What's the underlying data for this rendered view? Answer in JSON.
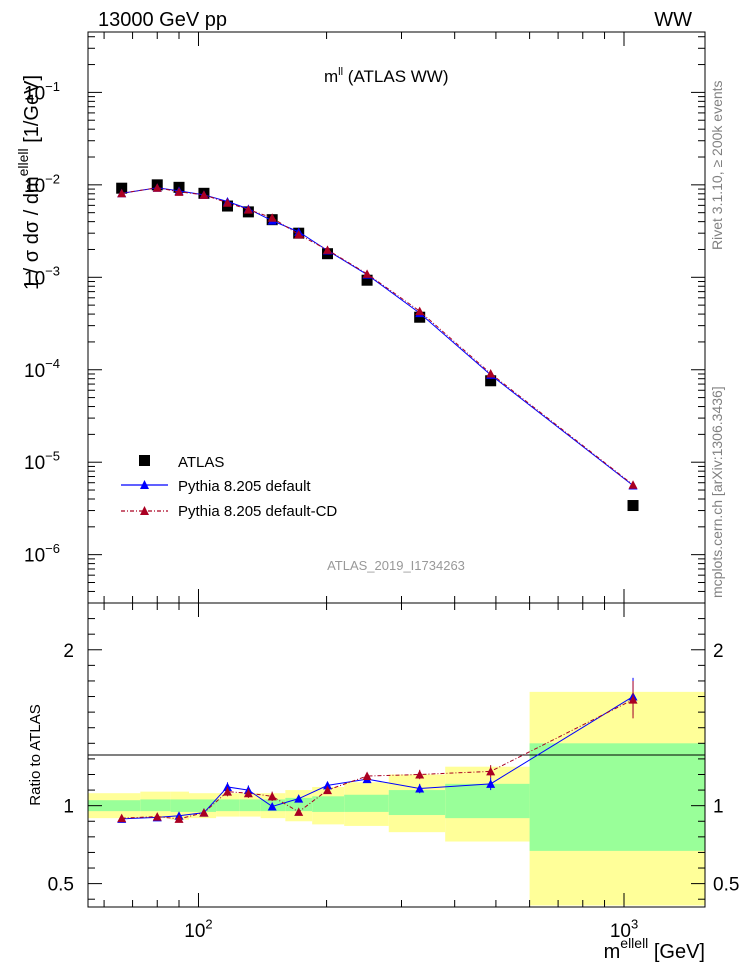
{
  "header": {
    "energy_label": "13000 GeV pp",
    "process_label": "WW"
  },
  "side_text": {
    "rivet": "Rivet 3.1.10, ≥ 200k events",
    "mcplots": "mcplots.cern.ch [arXiv:1306.3436]"
  },
  "chart_data": [
    {
      "type": "scatter",
      "panel": "main",
      "title": "m",
      "title_sup": "ll",
      "title_suffix": " (ATLAS WW)",
      "ylabel": "1 / σ  dσ / dm",
      "ylabel_sup": "ellell",
      "ylabel_suffix": " [1/GeV]",
      "xscale": "log",
      "yscale": "log",
      "xlim": [
        55,
        1550
      ],
      "ylim": [
        3e-07,
        0.45
      ],
      "y_ticks": [
        1e-06,
        1e-05,
        0.0001,
        0.001,
        0.01,
        0.1
      ],
      "y_tick_labels": [
        {
          "base": "10",
          "exp": "−6"
        },
        {
          "base": "10",
          "exp": "−5"
        },
        {
          "base": "10",
          "exp": "−4"
        },
        {
          "base": "10",
          "exp": "−3"
        },
        {
          "base": "10",
          "exp": "−2"
        },
        {
          "base": "10",
          "exp": "−1"
        }
      ],
      "watermark": "ATLAS_2019_I1734263",
      "legend": {
        "position": "bottom-left",
        "entries": [
          "ATLAS",
          "Pythia 8.205 default",
          "Pythia 8.205 default-CD"
        ]
      },
      "series": [
        {
          "name": "ATLAS",
          "color": "#000000",
          "marker": "square",
          "x": [
            66,
            80,
            90,
            103,
            117,
            131,
            149,
            172,
            201,
            249,
            331,
            486,
            1050
          ],
          "y": [
            0.0092,
            0.01,
            0.0094,
            0.0081,
            0.0059,
            0.0051,
            0.0042,
            0.003,
            0.0018,
            0.00093,
            0.00037,
            7.6e-05,
            3.4e-06
          ]
        },
        {
          "name": "Pythia 8.205 default",
          "color": "#0000ff",
          "marker": "triangle",
          "line": "solid",
          "x": [
            66,
            80,
            90,
            103,
            117,
            131,
            149,
            172,
            201,
            249,
            331,
            486,
            1050
          ],
          "y": [
            0.0081,
            0.0093,
            0.0086,
            0.0078,
            0.0066,
            0.0055,
            0.0041,
            0.0031,
            0.00195,
            0.00107,
            0.00041,
            8.8e-05,
            5.6e-06
          ]
        },
        {
          "name": "Pythia 8.205 default-CD",
          "color": "#aa0022",
          "marker": "triangle",
          "line": "dashed",
          "x": [
            66,
            80,
            90,
            103,
            117,
            131,
            149,
            172,
            201,
            249,
            331,
            486,
            1050
          ],
          "y": [
            0.0081,
            0.0093,
            0.0084,
            0.0078,
            0.0064,
            0.0054,
            0.0044,
            0.0029,
            0.00198,
            0.00109,
            0.00043,
            9.1e-05,
            5.7e-06
          ]
        }
      ]
    },
    {
      "type": "line",
      "panel": "ratio",
      "ylabel": "Ratio to ATLAS",
      "xlabel": "m",
      "xlabel_sup": "ellell",
      "xlabel_suffix": " [GeV]",
      "xscale": "log",
      "xlim": [
        55,
        1550
      ],
      "ylim": [
        0.35,
        2.3
      ],
      "y_ticks": [
        0.5,
        1,
        2
      ],
      "y_tick_labels": [
        "0.5",
        "1",
        "2"
      ],
      "x_ticks_labeled": [
        100,
        1000
      ],
      "x_tick_labels": [
        {
          "base": "10",
          "exp": "2"
        },
        {
          "base": "10",
          "exp": "3"
        }
      ],
      "bands": {
        "edges": [
          55,
          73,
          86,
          95,
          110,
          125,
          140,
          160,
          185,
          220,
          280,
          380,
          600,
          1550
        ],
        "inner_lo": [
          0.965,
          0.965,
          0.96,
          0.96,
          0.965,
          0.965,
          0.965,
          0.965,
          0.96,
          0.96,
          0.94,
          0.92,
          0.71
        ],
        "inner_hi": [
          1.035,
          1.04,
          1.04,
          1.04,
          1.04,
          1.04,
          1.04,
          1.05,
          1.06,
          1.07,
          1.1,
          1.14,
          1.4
        ],
        "outer_lo": [
          0.92,
          0.92,
          0.91,
          0.92,
          0.93,
          0.93,
          0.92,
          0.9,
          0.88,
          0.87,
          0.83,
          0.77,
          0.36
        ],
        "outer_hi": [
          1.08,
          1.09,
          1.09,
          1.08,
          1.08,
          1.08,
          1.08,
          1.1,
          1.12,
          1.15,
          1.2,
          1.25,
          1.73
        ],
        "inner_color": "#99ff99",
        "outer_color": "#ffff99"
      },
      "series": [
        {
          "name": "Pythia 8.205 default",
          "color": "#0000ff",
          "line": "solid",
          "x": [
            66,
            80,
            90,
            103,
            117,
            131,
            149,
            172,
            201,
            249,
            331,
            486,
            1050
          ],
          "y": [
            0.915,
            0.925,
            0.935,
            0.955,
            1.12,
            1.1,
            0.995,
            1.045,
            1.13,
            1.17,
            1.11,
            1.14,
            1.7
          ],
          "err": [
            0.02,
            0.02,
            0.02,
            0.02,
            0.03,
            0.03,
            0.02,
            0.02,
            0.02,
            0.02,
            0.03,
            0.04,
            0.12
          ]
        },
        {
          "name": "Pythia 8.205 default-CD",
          "color": "#aa0022",
          "line": "dashed",
          "x": [
            66,
            80,
            90,
            103,
            117,
            131,
            149,
            172,
            201,
            249,
            331,
            486,
            1050
          ],
          "y": [
            0.92,
            0.93,
            0.915,
            0.955,
            1.09,
            1.08,
            1.06,
            0.96,
            1.1,
            1.19,
            1.2,
            1.22,
            1.68
          ],
          "err": [
            0.02,
            0.02,
            0.02,
            0.02,
            0.03,
            0.03,
            0.03,
            0.02,
            0.02,
            0.02,
            0.03,
            0.04,
            0.12
          ]
        }
      ]
    }
  ]
}
